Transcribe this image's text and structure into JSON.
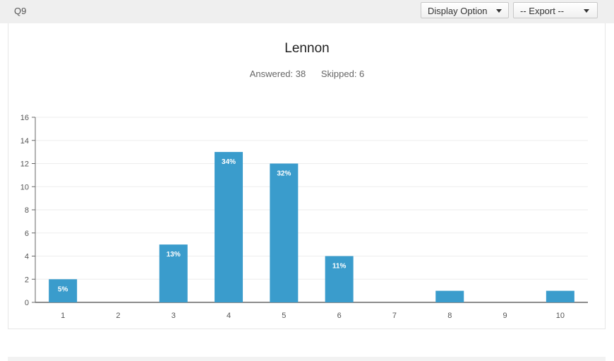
{
  "header": {
    "question_label": "Q9",
    "display_option_label": "Display Option",
    "export_label": "-- Export --"
  },
  "stats": {
    "answered": "Answered: 38",
    "skipped": "Skipped: 6"
  },
  "colors": {
    "bar": "#3a9ccc",
    "axis": "#666666",
    "grid": "#eeeeee"
  },
  "chart_data": {
    "type": "bar",
    "title": "Lennon",
    "categories": [
      "1",
      "2",
      "3",
      "4",
      "5",
      "6",
      "7",
      "8",
      "9",
      "10"
    ],
    "values": [
      2,
      0,
      5,
      13,
      12,
      4,
      0,
      1,
      0,
      1
    ],
    "data_labels": [
      "5%",
      "",
      "13%",
      "34%",
      "32%",
      "11%",
      "",
      "",
      "",
      ""
    ],
    "yticks": [
      "0",
      "2",
      "4",
      "6",
      "8",
      "10",
      "12",
      "14",
      "16"
    ],
    "ylim": [
      0,
      16
    ],
    "grid": true,
    "xlabel": "",
    "ylabel": ""
  }
}
